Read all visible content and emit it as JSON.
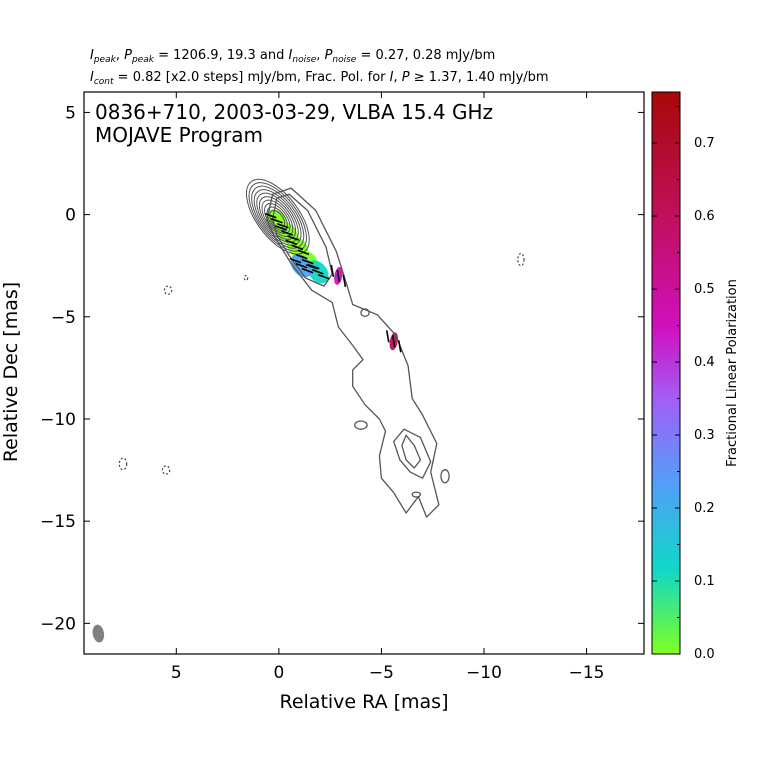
{
  "header": {
    "line1": {
      "i_label": "I",
      "i_sub": "peak",
      "p_label": "P",
      "p_sub": "peak",
      "peak_values": "= 1206.9, 19.3 and",
      "n_i_label": "I",
      "n_i_sub": "noise",
      "n_p_label": "P",
      "n_p_sub": "noise",
      "noise_values": "= 0.27, 0.28 mJy/bm"
    },
    "line2": {
      "c_label": "I",
      "c_sub": "cont",
      "cont_text": "= 0.82 [x2.0 steps] mJy/bm, Frac. Pol. for",
      "i_label": "I",
      "p_label": "P",
      "threshold_text": "≥ 1.37, 1.40 mJy/bm"
    }
  },
  "chart_data": {
    "type": "contour",
    "title": "0836+710, 2003-03-29, VLBA 15.4 GHz",
    "subtitle": "MOJAVE Program",
    "xlabel": "Relative RA [mas]",
    "ylabel": "Relative Dec [mas]",
    "xlim": [
      9.5,
      -17.8
    ],
    "ylim": [
      -21.5,
      6.0
    ],
    "xticks": [
      5,
      0,
      -5,
      -10,
      -15
    ],
    "xtick_labels": [
      "5",
      "0",
      "−5",
      "−10",
      "−15"
    ],
    "yticks": [
      5,
      0,
      -5,
      -10,
      -15,
      -20
    ],
    "ytick_labels": [
      "5",
      "0",
      "−5",
      "−10",
      "−15",
      "−20"
    ],
    "colorbar": {
      "label": "Fractional Linear Polarization",
      "range": [
        0.0,
        0.77
      ],
      "ticks": [
        0.0,
        0.1,
        0.2,
        0.3,
        0.4,
        0.5,
        0.6,
        0.7
      ],
      "tick_labels": [
        "0.0",
        "0.1",
        "0.2",
        "0.3",
        "0.4",
        "0.5",
        "0.6",
        "0.7"
      ],
      "colors": [
        "#80ff20",
        "#10d8c8",
        "#50a0f8",
        "#a060f8",
        "#d010c0",
        "#c0105a",
        "#a80808"
      ]
    },
    "contours": {
      "core_center": [
        0.05,
        -0.1
      ],
      "core_levels": 10,
      "jet_axis_angle_deg": 53,
      "outer_contours": [
        {
          "points": [
            [
              0.6,
              -0.3
            ],
            [
              0.3,
              1.0
            ],
            [
              -0.6,
              1.3
            ],
            [
              -1.8,
              0.2
            ],
            [
              -2.8,
              -1.8
            ],
            [
              -3.3,
              -3.4
            ],
            [
              -3.6,
              -4.4
            ],
            [
              -4.8,
              -4.9
            ],
            [
              -5.7,
              -5.9
            ],
            [
              -6.3,
              -7.4
            ],
            [
              -6.5,
              -9.0
            ],
            [
              -7.0,
              -9.8
            ],
            [
              -7.7,
              -11.2
            ],
            [
              -7.4,
              -12.6
            ],
            [
              -7.8,
              -14.2
            ],
            [
              -7.2,
              -14.8
            ],
            [
              -6.8,
              -13.8
            ],
            [
              -6.2,
              -14.6
            ],
            [
              -5.6,
              -13.6
            ],
            [
              -5.0,
              -12.9
            ],
            [
              -4.9,
              -11.8
            ],
            [
              -5.2,
              -10.6
            ],
            [
              -4.9,
              -10.0
            ],
            [
              -4.2,
              -9.3
            ],
            [
              -3.6,
              -8.4
            ],
            [
              -3.6,
              -7.6
            ],
            [
              -4.1,
              -7.1
            ],
            [
              -3.6,
              -6.4
            ],
            [
              -2.9,
              -5.5
            ],
            [
              -2.6,
              -4.3
            ],
            [
              -1.6,
              -3.7
            ],
            [
              -0.6,
              -2.4
            ],
            [
              0.2,
              -1.1
            ],
            [
              0.6,
              -0.3
            ]
          ]
        },
        {
          "points": [
            [
              0.3,
              -0.2
            ],
            [
              0.1,
              0.8
            ],
            [
              -0.5,
              1.0
            ],
            [
              -1.4,
              0.2
            ],
            [
              -2.3,
              -1.6
            ],
            [
              -2.6,
              -2.9
            ],
            [
              -2.2,
              -3.5
            ],
            [
              -1.3,
              -3.1
            ],
            [
              -0.5,
              -2.0
            ],
            [
              0.1,
              -1.0
            ],
            [
              0.3,
              -0.2
            ]
          ]
        },
        {
          "points": [
            [
              -6.2,
              -10.8
            ],
            [
              -6.6,
              -11.3
            ],
            [
              -6.9,
              -12.0
            ],
            [
              -6.6,
              -12.4
            ],
            [
              -6.2,
              -12.0
            ],
            [
              -6.0,
              -11.3
            ],
            [
              -6.2,
              -10.8
            ]
          ]
        },
        {
          "points": [
            [
              -6.1,
              -10.5
            ],
            [
              -6.9,
              -10.9
            ],
            [
              -7.4,
              -12.1
            ],
            [
              -7.0,
              -12.9
            ],
            [
              -6.4,
              -12.6
            ],
            [
              -5.9,
              -12.0
            ],
            [
              -5.6,
              -11.1
            ],
            [
              -6.1,
              -10.5
            ]
          ]
        }
      ],
      "islands": [
        {
          "center": [
            -4.2,
            -4.8
          ],
          "rx": 0.2,
          "ry": 0.18
        },
        {
          "center": [
            -4.0,
            -10.3
          ],
          "rx": 0.3,
          "ry": 0.2
        },
        {
          "center": [
            -8.1,
            -12.8
          ],
          "rx": 0.2,
          "ry": 0.32
        },
        {
          "center": [
            -6.7,
            -13.7
          ],
          "rx": 0.2,
          "ry": 0.12
        }
      ],
      "negative_islands": [
        {
          "center": [
            5.4,
            -3.7
          ],
          "rx": 0.18,
          "ry": 0.2
        },
        {
          "center": [
            1.6,
            -3.1
          ],
          "rx": 0.08,
          "ry": 0.12
        },
        {
          "center": [
            7.6,
            -12.2
          ],
          "rx": 0.18,
          "ry": 0.28
        },
        {
          "center": [
            5.5,
            -12.5
          ],
          "rx": 0.18,
          "ry": 0.2
        },
        {
          "center": [
            -11.8,
            -2.2
          ],
          "rx": 0.15,
          "ry": 0.3
        }
      ]
    },
    "polarization": {
      "regions": [
        {
          "x": 0.1,
          "y": -0.3,
          "fp": 0.0
        },
        {
          "x": -0.4,
          "y": -0.9,
          "fp": 0.03
        },
        {
          "x": -0.9,
          "y": -1.6,
          "fp": 0.07
        },
        {
          "x": -1.4,
          "y": -2.3,
          "fp": 0.11
        },
        {
          "x": -1.9,
          "y": -2.8,
          "fp": 0.14
        },
        {
          "x": -1.1,
          "y": -2.5,
          "fp": 0.24
        },
        {
          "x": -2.9,
          "y": -3.0,
          "fp": 0.55
        },
        {
          "x": -5.6,
          "y": -6.2,
          "fp": 0.62
        }
      ],
      "vectors_per_region": 3
    },
    "beam": {
      "center": [
        8.8,
        -20.5
      ],
      "major": 0.8,
      "minor": 0.5,
      "pa_deg": -10,
      "color": "#808080"
    }
  }
}
